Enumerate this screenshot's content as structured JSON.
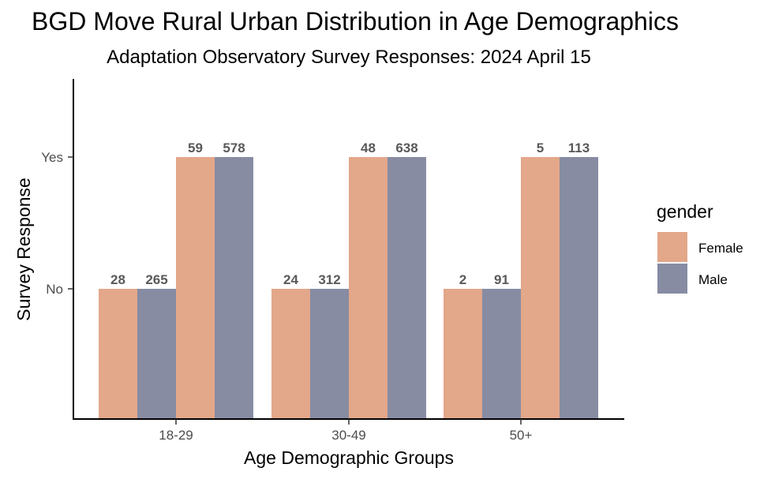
{
  "chart_data": {
    "type": "bar",
    "title": "BGD Move Rural Urban Distribution in Age Demographics",
    "subtitle": "Adaptation Observatory Survey Responses: 2024 April 15",
    "xlabel": "Age Demographic Groups",
    "ylabel": "Survey Response",
    "categories": [
      "18-29",
      "30-49",
      "50+"
    ],
    "responses": [
      "No",
      "Yes"
    ],
    "legend": {
      "title": "gender",
      "position": "right"
    },
    "grid": false,
    "series": [
      {
        "name": "Female",
        "color": "#E3A78A",
        "response": "No",
        "values": [
          28,
          24,
          2
        ]
      },
      {
        "name": "Male",
        "color": "#878CA3",
        "response": "No",
        "values": [
          265,
          312,
          91
        ]
      },
      {
        "name": "Female",
        "color": "#E3A78A",
        "response": "Yes",
        "values": [
          59,
          48,
          5
        ]
      },
      {
        "name": "Male",
        "color": "#878CA3",
        "response": "Yes",
        "values": [
          578,
          638,
          113
        ]
      }
    ]
  }
}
